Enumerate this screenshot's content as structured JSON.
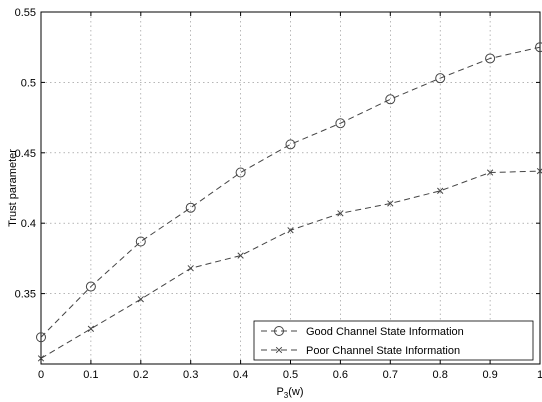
{
  "chart_data": {
    "type": "line",
    "title": "",
    "xlabel": "P",
    "xlabel_sub": "3",
    "xlabel_suffix": "(w)",
    "ylabel": "Trust parameter",
    "xlim": [
      0,
      1
    ],
    "ylim": [
      0.3,
      0.55
    ],
    "xticks": [
      0,
      0.1,
      0.2,
      0.3,
      0.4,
      0.5,
      0.6,
      0.7,
      0.8,
      0.9,
      1
    ],
    "xtick_labels": [
      "0",
      "0.1",
      "0.2",
      "0.3",
      "0.4",
      "0.5",
      "0.6",
      "0.7",
      "0.8",
      "0.9",
      "1"
    ],
    "yticks": [
      0.35,
      0.4,
      0.45,
      0.5,
      0.55
    ],
    "ytick_labels": [
      "0.35",
      "0.4",
      "0.45",
      "0.5",
      "0.55"
    ],
    "grid": true,
    "legend_position": "bottom-right",
    "x": [
      0,
      0.1,
      0.2,
      0.3,
      0.4,
      0.5,
      0.6,
      0.7,
      0.8,
      0.9,
      1
    ],
    "series": [
      {
        "name": "Good Channel State Information",
        "marker": "circle",
        "line_style": "dashed",
        "color": "#444444",
        "values": [
          0.319,
          0.355,
          0.387,
          0.411,
          0.436,
          0.456,
          0.471,
          0.488,
          0.503,
          0.517,
          0.525
        ]
      },
      {
        "name": "Poor Channel State Information",
        "marker": "x",
        "line_style": "dashed",
        "color": "#444444",
        "values": [
          0.304,
          0.325,
          0.346,
          0.368,
          0.377,
          0.395,
          0.407,
          0.414,
          0.423,
          0.436,
          0.437
        ]
      }
    ]
  }
}
